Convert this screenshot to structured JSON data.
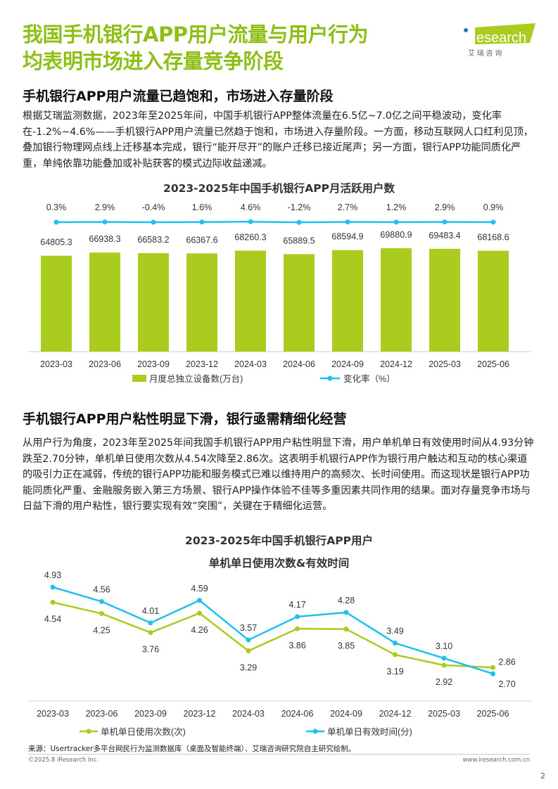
{
  "title": [
    "我国手机银行APP用户流量与用户行为",
    "均表明市场进入存量竞争阶段"
  ],
  "logo": {
    "text": "iResearch",
    "sub": "艾 瑞 咨 询"
  },
  "section1": {
    "heading": "手机银行APP用户流量已趋饱和，市场进入存量阶段",
    "paragraph": "根据艾瑞监测数据，2023年至2025年间，中国手机银行APP整体流量在6.5亿~7.0亿之间平稳波动，变化率在-1.2%~4.6%——手机银行APP用户流量已然趋于饱和，市场进入存量阶段。一方面，移动互联网人口红利见顶，叠加银行物理网点线上迁移基本完成，银行“能开尽开”的账户迁移已接近尾声；另一方面，银行APP功能同质化严重，单纯依靠功能叠加或补贴获客的模式边际收益递减。"
  },
  "section2": {
    "heading": "手机银行APP用户粘性明显下滑，银行亟需精细化经营",
    "paragraph": "从用户行为角度，2023年至2025年间我国手机银行APP用户粘性明显下滑，用户单机单日有效使用时间从4.93分钟跌至2.70分钟，单机单日使用次数从4.54次降至2.86次。这表明手机银行APP作为银行用户触达和互动的核心渠道的吸引力正在减弱，传统的银行APP功能和服务模式已难以维持用户的高频次、长时间使用。而这现状是银行APP功能同质化严重、金融服务嵌入第三方场景、银行APP操作体验不佳等多重因素共同作用的结果。面对存量竞争市场与日益下滑的用户粘性，银行要实现有效“突围”，关键在于精细化运营。"
  },
  "chart_data": [
    {
      "type": "bar",
      "title": "2023-2025年中国手机银行APP月活跃用户数",
      "categories": [
        "2023-03",
        "2023-06",
        "2023-09",
        "2023-12",
        "2024-03",
        "2024-06",
        "2024-09",
        "2024-12",
        "2025-03",
        "2025-06"
      ],
      "series": [
        {
          "name": "月度总独立设备数(万台)",
          "type": "bar",
          "color": "#a9cc1e",
          "values": [
            64805.3,
            66938.3,
            66583.2,
            66367.6,
            68260.3,
            65889.5,
            68594.9,
            69880.9,
            69483.4,
            68168.6
          ],
          "labels": [
            "64805.3",
            "66938.3",
            "66583.2",
            "66367.6",
            "68260.3",
            "65889.5",
            "68594.9",
            "69880.9",
            "69483.4",
            "68168.6"
          ]
        },
        {
          "name": "变化率（%）",
          "type": "line",
          "color": "#1fc0ee",
          "values": [
            0.3,
            2.9,
            -0.4,
            1.6,
            4.6,
            -1.2,
            2.7,
            1.2,
            2.9,
            0.9
          ],
          "labels": [
            "0.3%",
            "2.9%",
            "-0.4%",
            "1.6%",
            "4.6%",
            "-1.2%",
            "2.7%",
            "1.2%",
            "2.9%",
            "0.9%"
          ]
        }
      ],
      "ylim": [
        0,
        75000
      ],
      "legend": "bottom"
    },
    {
      "type": "line",
      "title": "2023-2025年中国手机银行APP用户",
      "subtitle": "单机单日使用次数&有效时间",
      "categories": [
        "2023-03",
        "2023-06",
        "2023-09",
        "2023-12",
        "2024-03",
        "2024-06",
        "2024-09",
        "2024-12",
        "2025-03",
        "2025-06"
      ],
      "series": [
        {
          "name": "单机单日使用次数(次)",
          "color": "#a9cc1e",
          "values": [
            4.54,
            4.25,
            3.76,
            4.26,
            3.29,
            3.86,
            3.85,
            3.19,
            2.92,
            2.86
          ],
          "labels": [
            "4.54",
            "4.25",
            "3.76",
            "4.26",
            "3.29",
            "3.86",
            "3.85",
            "3.19",
            "2.92",
            "2.86"
          ]
        },
        {
          "name": "单机单日有效时间(分)",
          "color": "#1fc0ee",
          "values": [
            4.93,
            4.56,
            4.01,
            4.59,
            3.57,
            4.17,
            4.28,
            3.49,
            3.1,
            2.7
          ],
          "labels": [
            "4.93",
            "4.56",
            "4.01",
            "4.59",
            "3.57",
            "4.17",
            "4.28",
            "3.49",
            "3.10",
            "2.70"
          ]
        }
      ],
      "ylim": [
        2.0,
        5.3
      ],
      "legend": "bottom"
    }
  ],
  "footer": {
    "source": "来源：Usertracker多平台网民行为监测数据库（桌面及智能终端）、艾瑞咨询研究院自主研究绘制。",
    "copyright": "©2025.8 iResearch Inc.",
    "website": "www.iresearch.com.cn",
    "page": "2"
  }
}
